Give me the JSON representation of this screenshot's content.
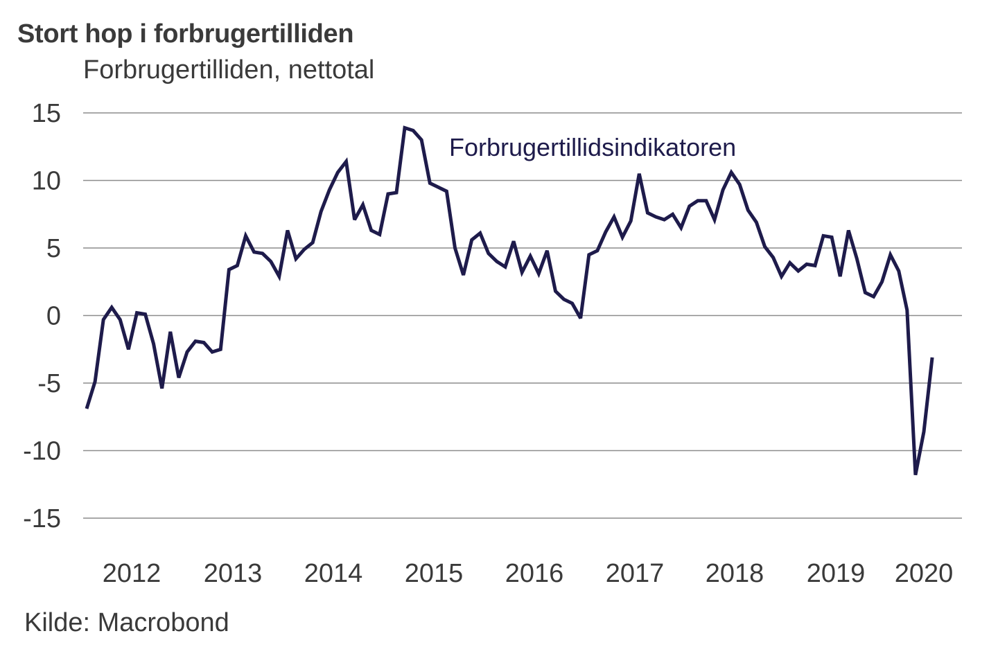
{
  "chart_data": {
    "type": "line",
    "title": "Stort hop i forbrugertilliden",
    "subtitle": "Forbrugertilliden, nettotal",
    "source": "Kilde: Macrobond",
    "xlabel": "",
    "ylabel": "Forbrugertilliden, nettotal",
    "ylim": [
      -15,
      15
    ],
    "yticks": [
      15,
      10,
      5,
      0,
      -5,
      -10,
      -15
    ],
    "ytick_labels": [
      "15",
      "10",
      "5",
      "0",
      "-5",
      "-10",
      "-15"
    ],
    "xtick_labels": [
      "2012",
      "2013",
      "2014",
      "2015",
      "2016",
      "2017",
      "2018",
      "2019",
      "2020"
    ],
    "x_start": "2011-10",
    "x_frequency": "monthly",
    "grid": true,
    "line_color": "#1e1b4b",
    "grid_color": "#8c8c8c",
    "text_color": "#3a3a3a",
    "series": [
      {
        "name": "Forbrugertillidsindikatoren",
        "values": [
          -6.9,
          -4.9,
          -0.3,
          0.6,
          -0.3,
          -2.5,
          0.2,
          0.1,
          -2.1,
          -5.4,
          -1.2,
          -4.6,
          -2.7,
          -1.9,
          -2.0,
          -2.7,
          -2.5,
          3.4,
          3.7,
          5.9,
          4.7,
          4.6,
          4.0,
          2.9,
          6.3,
          4.2,
          4.9,
          5.4,
          7.7,
          9.3,
          10.6,
          11.4,
          7.1,
          8.2,
          6.3,
          6.0,
          9.0,
          9.1,
          13.9,
          13.7,
          13.0,
          9.8,
          9.5,
          9.2,
          5.0,
          3.0,
          5.6,
          6.1,
          4.6,
          4.0,
          3.6,
          5.5,
          3.2,
          4.4,
          3.1,
          4.8,
          1.8,
          1.2,
          0.9,
          -0.2,
          4.5,
          4.8,
          6.2,
          7.3,
          5.8,
          7.0,
          10.5,
          7.6,
          7.3,
          7.1,
          7.5,
          6.5,
          8.1,
          8.5,
          8.5,
          7.1,
          9.3,
          10.6,
          9.7,
          7.8,
          6.9,
          5.1,
          4.3,
          2.9,
          3.9,
          3.3,
          3.8,
          3.7,
          5.9,
          5.8,
          2.9,
          6.3,
          4.2,
          1.7,
          1.4,
          2.5,
          4.5,
          3.3,
          0.4,
          -11.8,
          -8.6,
          -3.1
        ]
      }
    ]
  }
}
